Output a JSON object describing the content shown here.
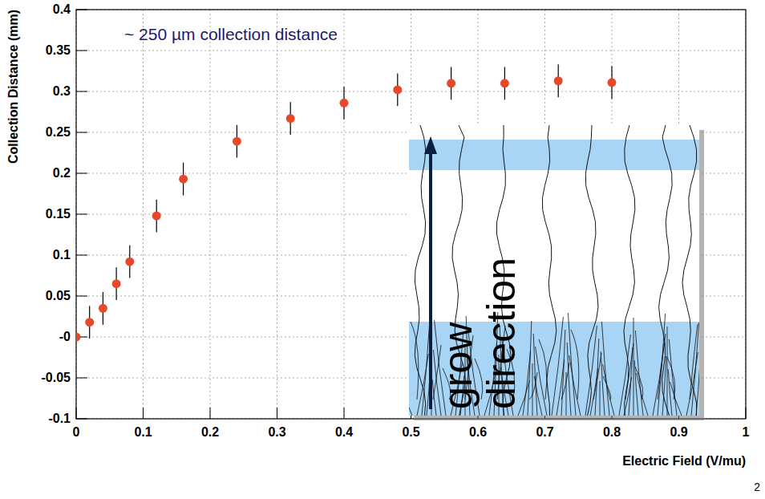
{
  "chart_data": {
    "type": "scatter",
    "xlabel": "Electric Field (V/mu)",
    "ylabel": "Collection Distance (mm)",
    "annotations": [
      "~ 250 µm collection distance"
    ],
    "inset_labels": [
      "grow",
      "direction"
    ],
    "x": [
      0,
      0.02,
      0.04,
      0.06,
      0.08,
      0.12,
      0.16,
      0.24,
      0.32,
      0.4,
      0.48,
      0.56,
      0.64,
      0.72,
      0.8
    ],
    "values": [
      0,
      0.018,
      0.035,
      0.065,
      0.092,
      0.148,
      0.193,
      0.239,
      0.267,
      0.286,
      0.302,
      0.31,
      0.31,
      0.313,
      0.311
    ],
    "errors": [
      0.002,
      0.02,
      0.02,
      0.02,
      0.02,
      0.02,
      0.02,
      0.02,
      0.02,
      0.02,
      0.02,
      0.02,
      0.02,
      0.02,
      0.02
    ],
    "color": "#e8482a",
    "marker": "circle",
    "xlim": [
      0,
      1
    ],
    "xticks": [
      0,
      0.1,
      0.2,
      0.3,
      0.4,
      0.5,
      0.6,
      0.7,
      0.8,
      0.9,
      1
    ],
    "ylim": [
      -0.1,
      0.4
    ],
    "yticks": [
      -0.1,
      -0.05,
      {
        "value": 0,
        "label": "-0"
      },
      0.05,
      0.1,
      0.15,
      0.2,
      0.25,
      0.3,
      0.35,
      0.4
    ],
    "grid": true
  },
  "slide_number": "2"
}
